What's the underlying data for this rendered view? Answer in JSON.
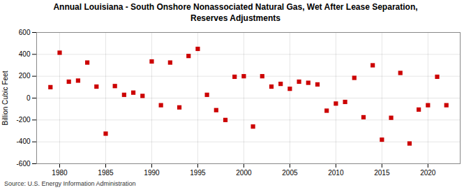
{
  "chart_data": {
    "type": "scatter",
    "title": "Annual Louisiana - South Onshore Nonassociated Natural Gas, Wet After Lease Separation,\nReserves Adjustments",
    "ylabel": "Billion Cubic Feet",
    "source": "Source: U.S. Energy Information Administration",
    "x": [
      1979,
      1980,
      1981,
      1982,
      1983,
      1984,
      1985,
      1986,
      1987,
      1988,
      1989,
      1990,
      1991,
      1992,
      1993,
      1994,
      1995,
      1996,
      1997,
      1998,
      1999,
      2000,
      2001,
      2002,
      2003,
      2004,
      2005,
      2006,
      2007,
      2008,
      2009,
      2010,
      2011,
      2012,
      2013,
      2014,
      2015,
      2016,
      2017,
      2018,
      2019,
      2020,
      2021,
      2022
    ],
    "values": [
      100,
      415,
      150,
      160,
      325,
      105,
      -325,
      110,
      30,
      50,
      20,
      335,
      -65,
      325,
      -85,
      385,
      450,
      30,
      -110,
      -200,
      195,
      200,
      -260,
      200,
      105,
      130,
      85,
      150,
      140,
      125,
      -115,
      -50,
      -35,
      185,
      -175,
      300,
      -380,
      -180,
      230,
      -415,
      -105,
      -65,
      195,
      -65
    ],
    "color": "#cc0000",
    "marker": "square",
    "xlim": [
      1977.5,
      2023.5
    ],
    "xticks": [
      1980,
      1985,
      1990,
      1995,
      2000,
      2005,
      2010,
      2015,
      2020
    ],
    "ylim": [
      -600,
      600
    ],
    "yticks": [
      -600,
      -400,
      -200,
      0,
      200,
      400,
      600
    ],
    "grid": true
  }
}
